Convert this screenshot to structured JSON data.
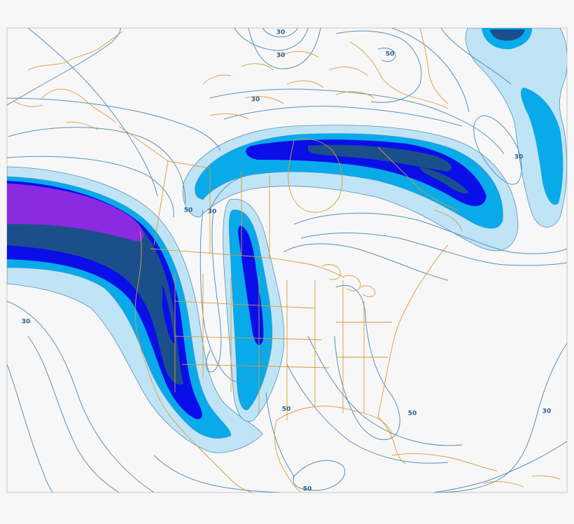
{
  "colors": {
    "page_background": "#f6f6f6",
    "map_background": "#f7f7f7",
    "contour_line": "#5b8fb8",
    "coastline_border": "#d99a3c",
    "jet_band_light": "#bfe4f6",
    "jet_band_medium": "#08aaea",
    "jet_band_dark_blue": "#0a0fe8",
    "jet_band_navy": "#1b4f8c",
    "jet_band_purple": "#8a2be2",
    "contour_label_text": "#2f5f8f"
  },
  "contour_labels": [
    "30",
    "30",
    "50",
    "30",
    "30",
    "50",
    "30",
    "30",
    "50",
    "50",
    "30",
    "50"
  ]
}
